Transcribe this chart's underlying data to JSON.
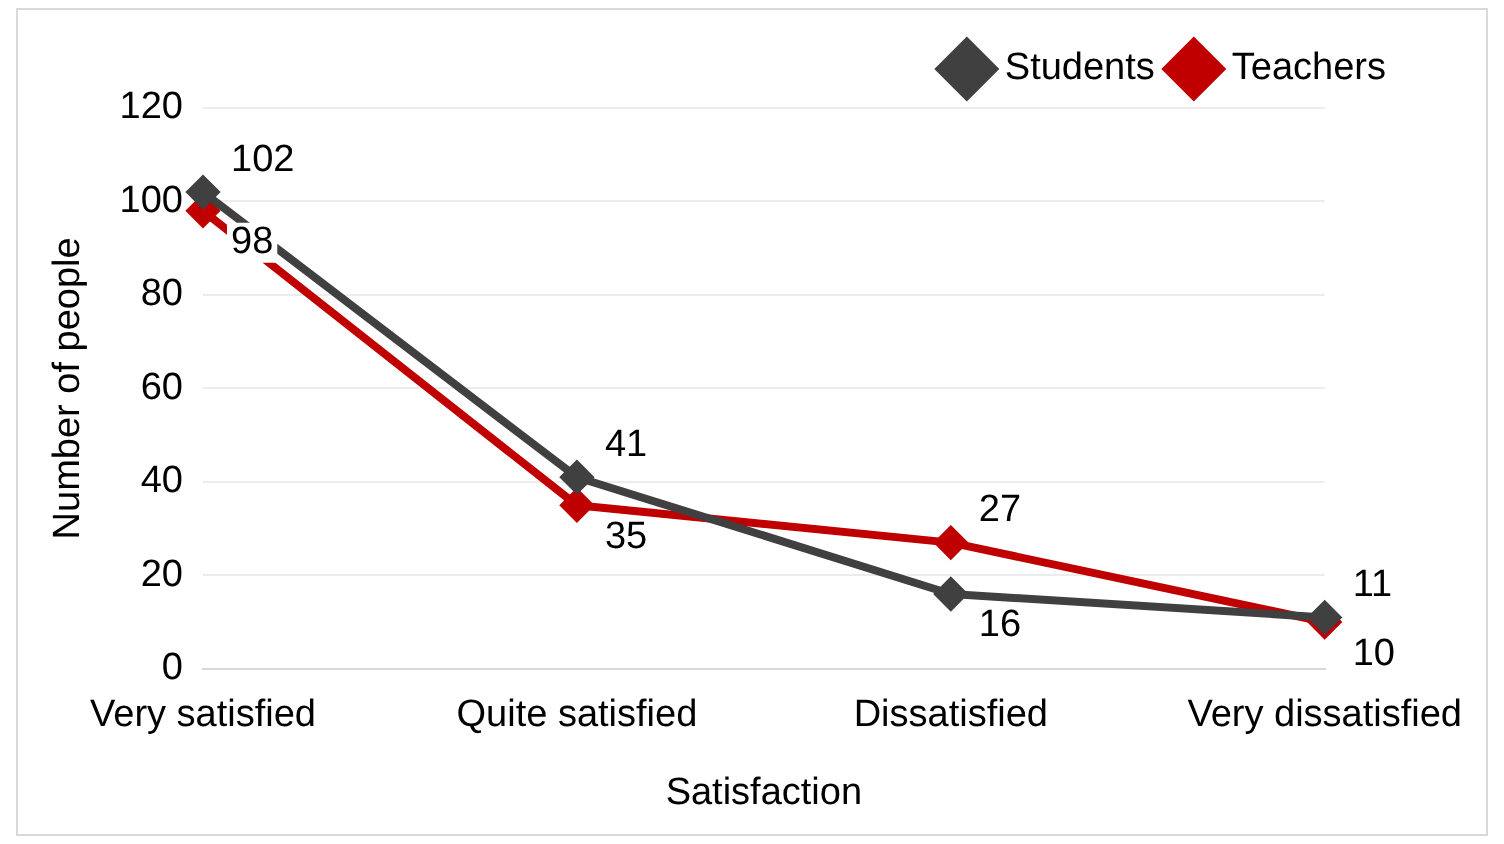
{
  "chart_data": {
    "type": "line",
    "xlabel": "Satisfaction",
    "ylabel": "Number of people",
    "categories": [
      "Very satisfied",
      "Quite satisfied",
      "Dissatisfied",
      "Very dissatisfied"
    ],
    "series": [
      {
        "name": "Students",
        "color": "#404040",
        "values": [
          102,
          41,
          16,
          11
        ]
      },
      {
        "name": "Teachers",
        "color": "#c00000",
        "values": [
          98,
          35,
          27,
          10
        ]
      }
    ],
    "ylim": [
      0,
      120
    ],
    "yticks": [
      0,
      20,
      40,
      60,
      80,
      100,
      120
    ],
    "grid": "y",
    "legend": "top right",
    "marker": "diamond",
    "data_labels": true
  }
}
